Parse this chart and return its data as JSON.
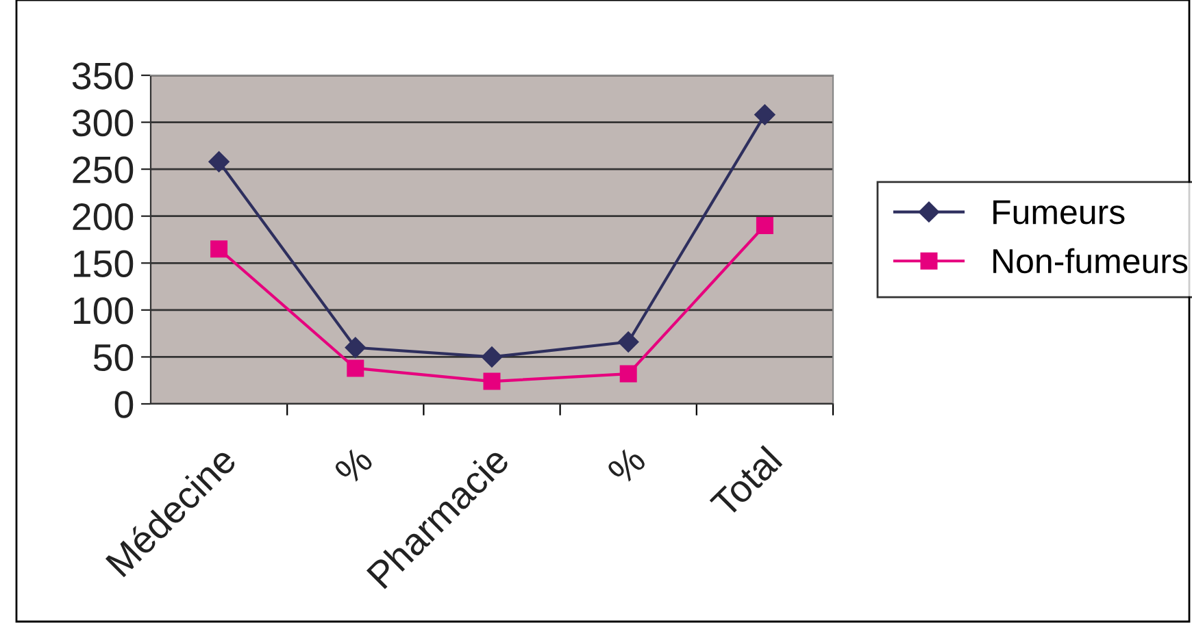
{
  "chart_data": {
    "type": "line",
    "categories": [
      "Médecine",
      "%",
      "Pharmacie",
      "%",
      "Total"
    ],
    "series": [
      {
        "name": "Fumeurs",
        "color": "#2e2f5e",
        "marker": "diamond",
        "values": [
          258,
          60,
          50,
          66,
          308
        ]
      },
      {
        "name": "Non-fumeurs",
        "color": "#e6007e",
        "marker": "square",
        "values": [
          165,
          38,
          24,
          32,
          190
        ]
      }
    ],
    "ylim": [
      0,
      350
    ],
    "yticks": [
      0,
      50,
      100,
      150,
      200,
      250,
      300,
      350
    ],
    "grid": "y",
    "legend": "right",
    "line_style": "solid"
  }
}
